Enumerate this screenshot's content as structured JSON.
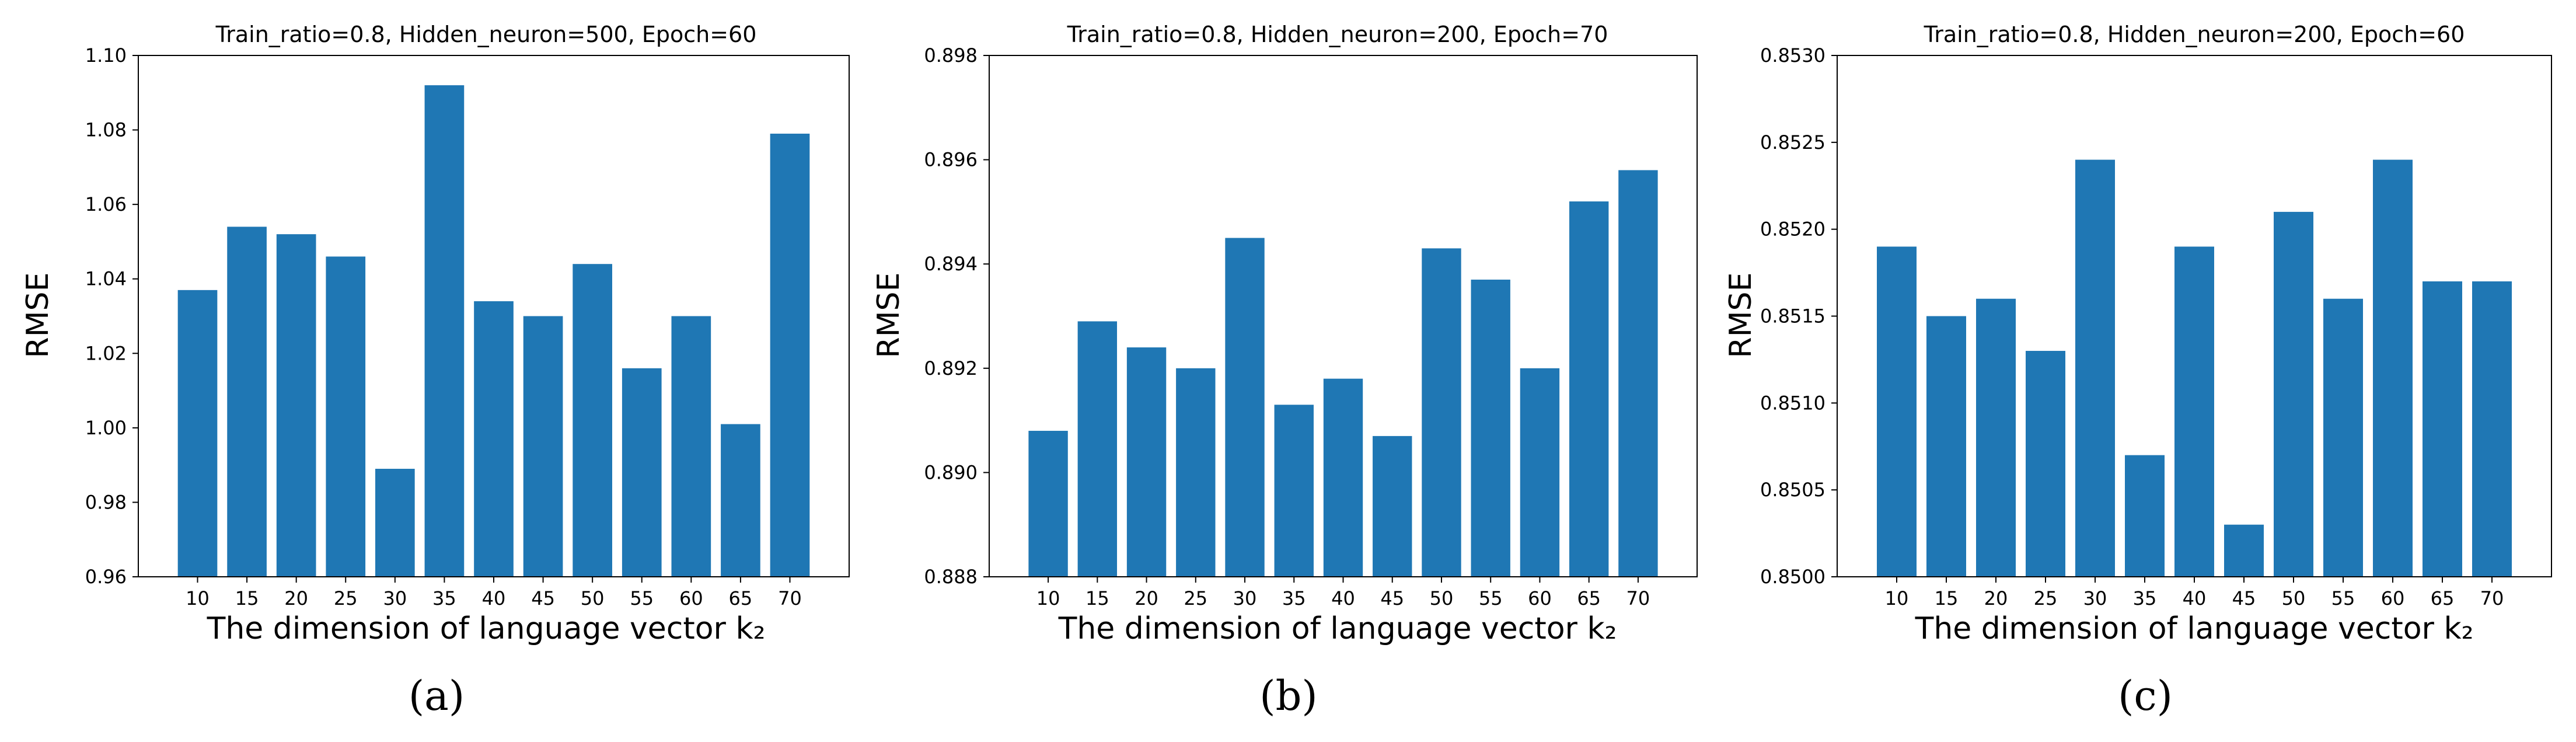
{
  "figure": {
    "subfigure_labels": [
      "(a)",
      "(b)",
      "(c)"
    ]
  },
  "chart_data": [
    {
      "type": "bar",
      "title": "Train_ratio=0.8, Hidden_neuron=500, Epoch=60",
      "xlabel": "The dimension of language vector k₂",
      "ylabel": "RMSE",
      "categories": [
        "10",
        "15",
        "20",
        "25",
        "30",
        "35",
        "40",
        "45",
        "50",
        "55",
        "60",
        "65",
        "70"
      ],
      "values": [
        1.037,
        1.054,
        1.052,
        1.046,
        0.989,
        1.092,
        1.034,
        1.03,
        1.044,
        1.016,
        1.03,
        1.001,
        1.079
      ],
      "ylim": [
        0.96,
        1.1
      ],
      "yticks": [
        "0.96",
        "0.98",
        "1.00",
        "1.02",
        "1.04",
        "1.06",
        "1.08",
        "1.10"
      ],
      "color": "#1f77b4",
      "grid": false
    },
    {
      "type": "bar",
      "title": "Train_ratio=0.8, Hidden_neuron=200, Epoch=70",
      "xlabel": "The dimension of language vector k₂",
      "ylabel": "RMSE",
      "categories": [
        "10",
        "15",
        "20",
        "25",
        "30",
        "35",
        "40",
        "45",
        "50",
        "55",
        "60",
        "65",
        "70"
      ],
      "values": [
        0.8908,
        0.8929,
        0.8924,
        0.892,
        0.8945,
        0.8913,
        0.8918,
        0.8907,
        0.8943,
        0.8937,
        0.892,
        0.8952,
        0.8958
      ],
      "ylim": [
        0.888,
        0.898
      ],
      "yticks": [
        "0.888",
        "0.890",
        "0.892",
        "0.894",
        "0.896",
        "0.898"
      ],
      "color": "#1f77b4",
      "grid": false
    },
    {
      "type": "bar",
      "title": "Train_ratio=0.8, Hidden_neuron=200, Epoch=60",
      "xlabel": "The dimension of language vector k₂",
      "ylabel": "RMSE",
      "categories": [
        "10",
        "15",
        "20",
        "25",
        "30",
        "35",
        "40",
        "45",
        "50",
        "55",
        "60",
        "65",
        "70"
      ],
      "values": [
        0.8519,
        0.8515,
        0.8516,
        0.8513,
        0.8524,
        0.8507,
        0.8519,
        0.8503,
        0.8521,
        0.8516,
        0.8524,
        0.8517,
        0.8517
      ],
      "ylim": [
        0.85,
        0.853
      ],
      "yticks": [
        "0.8500",
        "0.8505",
        "0.8510",
        "0.8515",
        "0.8520",
        "0.8525",
        "0.8530"
      ],
      "color": "#1f77b4",
      "grid": false
    }
  ]
}
